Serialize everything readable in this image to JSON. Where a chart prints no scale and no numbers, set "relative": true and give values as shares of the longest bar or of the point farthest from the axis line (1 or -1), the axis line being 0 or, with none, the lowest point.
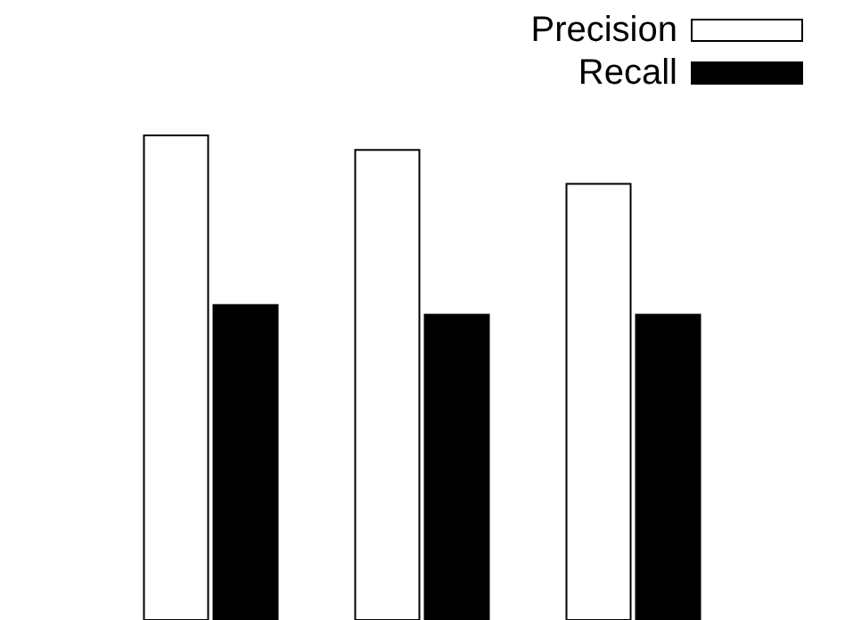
{
  "chart_data": {
    "type": "bar",
    "relative": true,
    "categories": [
      null,
      null,
      null
    ],
    "legend": "top right",
    "series": [
      {
        "name": "Precision",
        "color": "#ffffff",
        "values": [
          1,
          0.97,
          0.9
        ]
      },
      {
        "name": "Recall",
        "color": "#000000",
        "values": [
          0.65,
          0.63,
          0.63
        ]
      }
    ]
  }
}
